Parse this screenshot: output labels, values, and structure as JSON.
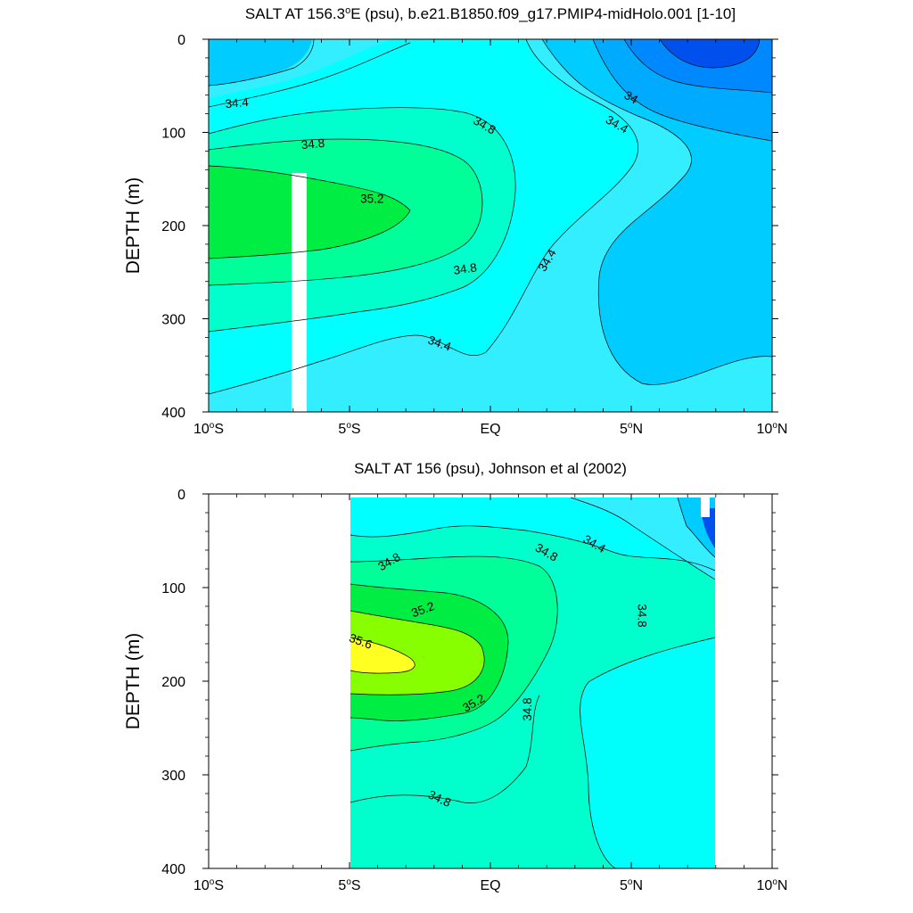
{
  "chart_data": [
    {
      "type": "contour",
      "title": "SALT AT 156.3°E (psu), b.e21.B1850.f09_g17.PMIP4-midHolo.001 [1-10]",
      "title_main": "SALT AT 156.3",
      "title_sup": "o",
      "title_rest": "E (psu), b.e21.B1850.f09_g17.PMIP4-midHolo.001 [1-10]",
      "xlabel": "",
      "ylabel": "DEPTH (m)",
      "xlim": [
        -10,
        10
      ],
      "ylim": [
        0,
        400
      ],
      "y_reversed": true,
      "xticks": [
        {
          "pre": "10",
          "sup": "o",
          "post": "S"
        },
        {
          "pre": "5",
          "sup": "o",
          "post": "S"
        },
        {
          "pre": "EQ",
          "sup": "",
          "post": ""
        },
        {
          "pre": "5",
          "sup": "o",
          "post": "N"
        },
        {
          "pre": "10",
          "sup": "o",
          "post": "N"
        }
      ],
      "yticks": [
        "0",
        "100",
        "200",
        "300",
        "400"
      ],
      "missing_bands": [
        {
          "x0": -7.1,
          "x1": -6.6,
          "y0": 145,
          "y1": 400
        }
      ],
      "contour_labels": [
        {
          "text": "34.4",
          "x": -9.0,
          "y": 68,
          "rot": -5
        },
        {
          "text": "34.8",
          "x": -6.3,
          "y": 112,
          "rot": -5
        },
        {
          "text": "35.2",
          "x": -4.2,
          "y": 171,
          "rot": 0
        },
        {
          "text": "34.8",
          "x": -0.9,
          "y": 246,
          "rot": -8
        },
        {
          "text": "34.4",
          "x": -1.8,
          "y": 326,
          "rot": 20
        },
        {
          "text": "34.8",
          "x": -0.2,
          "y": 92,
          "rot": 30
        },
        {
          "text": "34.4",
          "x": 2.0,
          "y": 237,
          "rot": -60
        },
        {
          "text": "34",
          "x": 5.0,
          "y": 62,
          "rot": 30
        },
        {
          "text": "34.4",
          "x": 4.5,
          "y": 91,
          "rot": 30
        }
      ]
    },
    {
      "type": "contour",
      "title": "SALT AT 156 (psu), Johnson et al (2002)",
      "xlabel": "",
      "ylabel": "DEPTH (m)",
      "xlim": [
        -10,
        10
      ],
      "ylim": [
        0,
        400
      ],
      "y_reversed": true,
      "xticks": [
        {
          "pre": "10",
          "sup": "o",
          "post": "S"
        },
        {
          "pre": "5",
          "sup": "o",
          "post": "S"
        },
        {
          "pre": "EQ",
          "sup": "",
          "post": ""
        },
        {
          "pre": "5",
          "sup": "o",
          "post": "N"
        },
        {
          "pre": "10",
          "sup": "o",
          "post": "N"
        }
      ],
      "yticks": [
        "0",
        "100",
        "200",
        "300",
        "400"
      ],
      "data_extent": {
        "x0": -5,
        "x1": 8
      },
      "missing_bands": [
        {
          "x0": 7.65,
          "x1": 7.95,
          "y0": 0,
          "y1": 25
        }
      ],
      "contour_labels": [
        {
          "text": "34.8",
          "x": -3.6,
          "y": 72,
          "rot": -30
        },
        {
          "text": "34.8",
          "x": 2.0,
          "y": 62,
          "rot": 30
        },
        {
          "text": "34.4",
          "x": 3.7,
          "y": 53,
          "rot": 30
        },
        {
          "text": "34.8",
          "x": 5.4,
          "y": 130,
          "rot": 90
        },
        {
          "text": "35.2",
          "x": -2.4,
          "y": 123,
          "rot": -20
        },
        {
          "text": "35.6",
          "x": -4.6,
          "y": 157,
          "rot": 20
        },
        {
          "text": "35.2",
          "x": -0.6,
          "y": 223,
          "rot": -30
        },
        {
          "text": "34.8",
          "x": 1.3,
          "y": 230,
          "rot": -90
        },
        {
          "text": "34.8",
          "x": -1.8,
          "y": 325,
          "rot": 25
        }
      ]
    }
  ]
}
